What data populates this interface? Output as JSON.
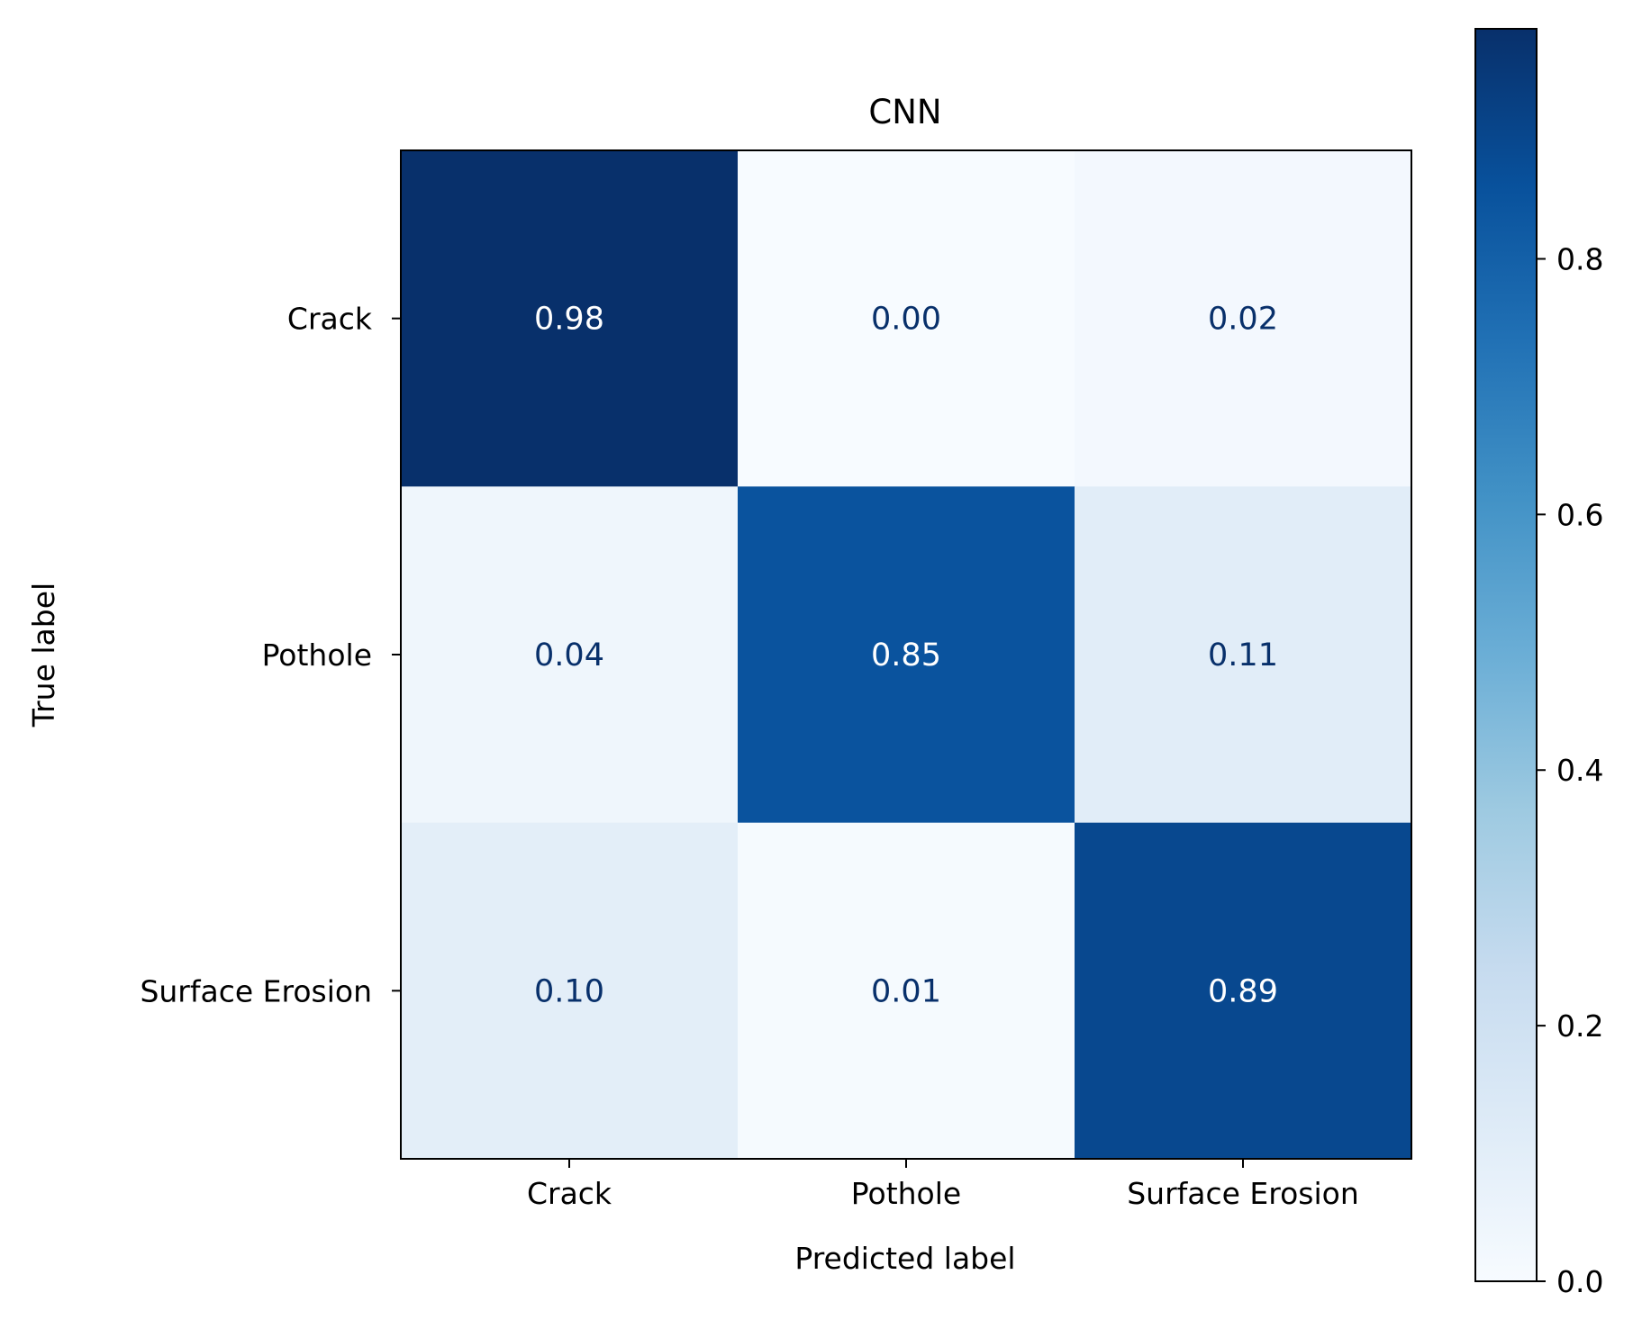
{
  "chart_data": {
    "type": "heatmap",
    "title": "CNN",
    "xlabel": "Predicted label",
    "ylabel": "True label",
    "x_categories": [
      "Crack",
      "Pothole",
      "Surface Erosion"
    ],
    "y_categories": [
      "Crack",
      "Pothole",
      "Surface Erosion"
    ],
    "values": [
      [
        0.98,
        0.0,
        0.02
      ],
      [
        0.04,
        0.85,
        0.11
      ],
      [
        0.1,
        0.01,
        0.89
      ]
    ],
    "value_labels": [
      [
        "0.98",
        "0.00",
        "0.02"
      ],
      [
        "0.04",
        "0.85",
        "0.11"
      ],
      [
        "0.10",
        "0.01",
        "0.89"
      ]
    ],
    "colormap": "Blues",
    "colorbar": {
      "range": [
        0,
        0.98
      ],
      "ticks": [
        0.0,
        0.2,
        0.4,
        0.6,
        0.8
      ],
      "tick_labels": [
        "0.0",
        "0.2",
        "0.4",
        "0.6",
        "0.8"
      ]
    },
    "text_colors": {
      "dark_cell": "#ffffff",
      "light_cell": "#08306b"
    },
    "grid": false
  }
}
